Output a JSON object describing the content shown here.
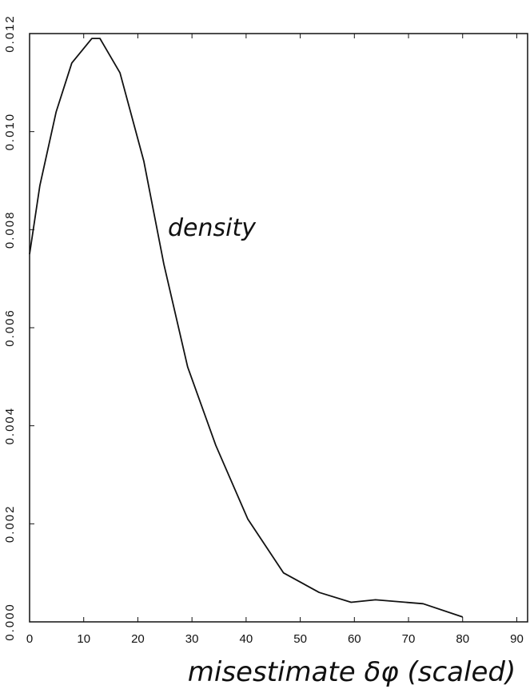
{
  "chart_data": {
    "type": "line",
    "x_label": "misestimate δφ (scaled)",
    "annotation": "density",
    "x": [
      0,
      1.9,
      4.9,
      7.8,
      11.5,
      13,
      16.7,
      21.1,
      24.8,
      29.2,
      34.4,
      40.3,
      46.9,
      53.5,
      59.4,
      63.9,
      72.7,
      80
    ],
    "series": [
      {
        "name": "density",
        "color": "#111111",
        "values": [
          0.0075,
          0.0089,
          0.0104,
          0.0114,
          0.0119,
          0.0119,
          0.0112,
          0.0094,
          0.0073,
          0.0052,
          0.0036,
          0.0021,
          0.001,
          0.0006,
          0.0004,
          0.00045,
          0.00037,
          0.0001
        ]
      }
    ],
    "xlim": [
      0,
      92
    ],
    "ylim": [
      0,
      0.012
    ],
    "xticks": [
      0,
      10,
      20,
      30,
      40,
      50,
      60,
      70,
      80,
      90
    ],
    "yticks": [
      {
        "value": 0,
        "label": "0.000"
      },
      {
        "value": 0.002,
        "label": "0.002"
      },
      {
        "value": 0.004,
        "label": "0.004"
      },
      {
        "value": 0.006,
        "label": "0.006"
      },
      {
        "value": 0.008,
        "label": "0.008"
      },
      {
        "value": 0.01,
        "label": "0.010"
      },
      {
        "value": 0.012,
        "label": "0.012"
      }
    ],
    "grid": false
  }
}
